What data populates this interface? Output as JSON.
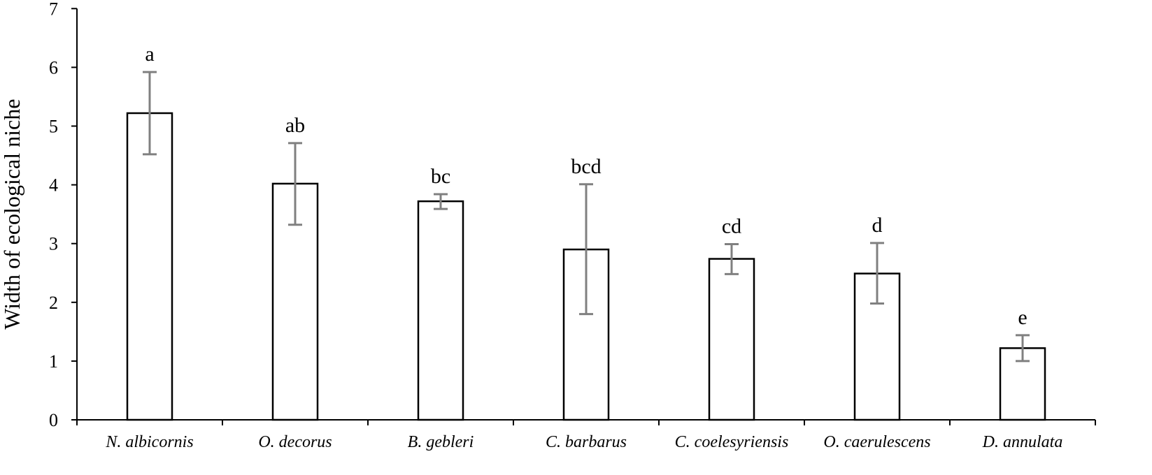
{
  "chart_data": {
    "type": "bar",
    "title": "",
    "xlabel": "",
    "ylabel": "Width of ecological niche",
    "ylim": [
      0,
      7
    ],
    "yticks": [
      "0",
      "1",
      "2",
      "3",
      "4",
      "5",
      "6",
      "7"
    ],
    "grid": false,
    "legend": "none",
    "categories": [
      "N. albicornis",
      "O. decorus",
      "B. gebleri",
      "C. barbarus",
      "C. coelesyriensis",
      "O. caerulescens",
      "D. annulata"
    ],
    "values": [
      5.22,
      4.02,
      3.72,
      2.9,
      2.74,
      2.49,
      1.22
    ],
    "error_bars": [
      {
        "low": 4.52,
        "high": 5.92
      },
      {
        "low": 3.32,
        "high": 4.71
      },
      {
        "low": 3.59,
        "high": 3.84
      },
      {
        "low": 1.8,
        "high": 4.01
      },
      {
        "low": 2.48,
        "high": 2.99
      },
      {
        "low": 1.98,
        "high": 3.01
      },
      {
        "low": 1.0,
        "high": 1.44
      }
    ],
    "significance_labels": [
      "a",
      "ab",
      "bc",
      "bcd",
      "cd",
      "d",
      "e"
    ],
    "colors": {
      "bar_fill": "#ffffff",
      "bar_stroke": "#000000",
      "error_bar": "#808080",
      "axis": "#000000"
    }
  }
}
